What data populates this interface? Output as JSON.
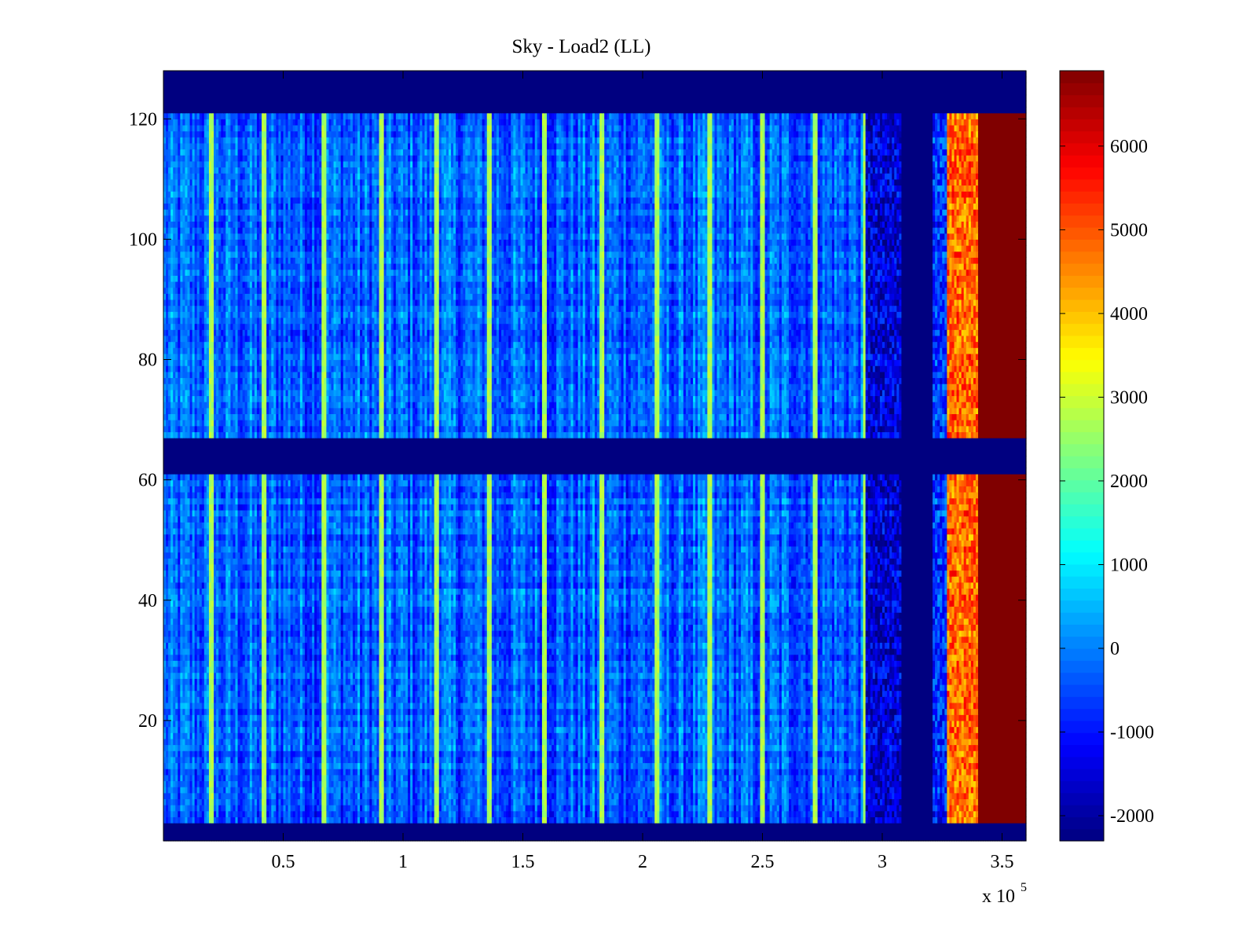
{
  "chart_data": {
    "type": "heatmap",
    "title": "Sky - Load2 (LL)",
    "xlabel": "",
    "ylabel": "",
    "x_multiplier_label": "x 10",
    "x_multiplier_exponent": "5",
    "xlim": [
      0,
      3.6
    ],
    "ylim": [
      0,
      128
    ],
    "x_ticks": [
      {
        "value": 0.5,
        "label": "0.5"
      },
      {
        "value": 1,
        "label": "1"
      },
      {
        "value": 1.5,
        "label": "1.5"
      },
      {
        "value": 2,
        "label": "2"
      },
      {
        "value": 2.5,
        "label": "2.5"
      },
      {
        "value": 3,
        "label": "3"
      },
      {
        "value": 3.5,
        "label": "3.5"
      }
    ],
    "y_ticks": [
      {
        "value": 20,
        "label": "20"
      },
      {
        "value": 40,
        "label": "40"
      },
      {
        "value": 60,
        "label": "60"
      },
      {
        "value": 80,
        "label": "80"
      },
      {
        "value": 100,
        "label": "100"
      },
      {
        "value": 120,
        "label": "120"
      }
    ],
    "colormap": "jet",
    "clim": [
      -2300,
      6900
    ],
    "colorbar_ticks": [
      {
        "value": -2000,
        "label": "-2000"
      },
      {
        "value": -1000,
        "label": "-1000"
      },
      {
        "value": 0,
        "label": "0"
      },
      {
        "value": 1000,
        "label": "1000"
      },
      {
        "value": 2000,
        "label": "2000"
      },
      {
        "value": 3000,
        "label": "3000"
      },
      {
        "value": 4000,
        "label": "4000"
      },
      {
        "value": 5000,
        "label": "5000"
      },
      {
        "value": 6000,
        "label": "6000"
      }
    ],
    "masked_row_bands": [
      [
        0,
        3
      ],
      [
        61,
        67
      ],
      [
        121,
        128
      ]
    ],
    "masked_col_bands": [
      [
        3.08,
        3.21
      ]
    ],
    "background_level": -300,
    "vertical_spike_x": [
      0.2,
      0.42,
      0.67,
      0.91,
      1.14,
      1.36,
      1.59,
      1.83,
      2.06,
      2.28,
      2.5,
      2.72,
      2.93
    ],
    "spike_level": 2700,
    "regions": [
      {
        "x_range": [
          2.93,
          3.08
        ],
        "level": -1500
      },
      {
        "x_range": [
          3.21,
          3.27
        ],
        "level": -700
      },
      {
        "x_range": [
          3.27,
          3.4
        ],
        "level": 4800
      },
      {
        "x_range": [
          3.4,
          3.6
        ],
        "level": 6900
      }
    ]
  }
}
